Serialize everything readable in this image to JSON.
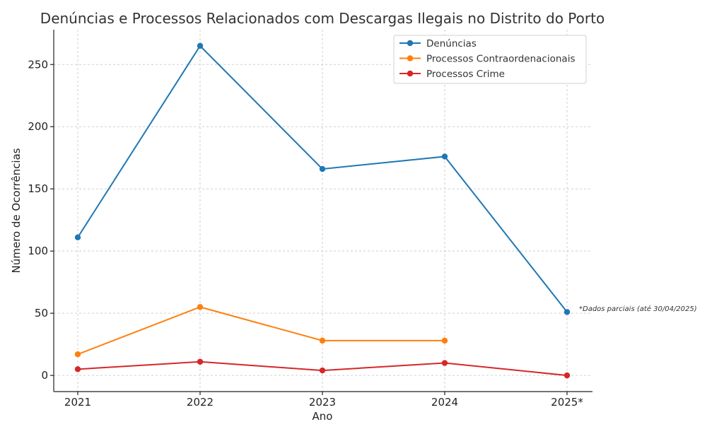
{
  "chart_data": {
    "type": "line",
    "title": "Denúncias e Processos Relacionados com Descargas Ilegais no Distrito do Porto",
    "xlabel": "Ano",
    "ylabel": "Número de Ocorrências",
    "categories": [
      "2021",
      "2022",
      "2023",
      "2024",
      "2025*"
    ],
    "ylim": [
      -13,
      278
    ],
    "yticks": [
      0,
      50,
      100,
      150,
      200,
      250
    ],
    "grid": true,
    "legend_position": "top-right",
    "series": [
      {
        "name": "Denúncias",
        "color": "#1f77b4",
        "values": [
          111,
          265,
          166,
          176,
          51
        ]
      },
      {
        "name": "Processos Contraordenacionais",
        "color": "#ff7f0e",
        "values": [
          17,
          55,
          28,
          28,
          null
        ]
      },
      {
        "name": "Processos Crime",
        "color": "#d62728",
        "values": [
          5,
          11,
          4,
          10,
          0
        ]
      }
    ],
    "annotation": "*Dados parciais (até 30/04/2025)"
  }
}
